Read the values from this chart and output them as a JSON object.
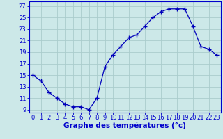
{
  "x": [
    0,
    1,
    2,
    3,
    4,
    5,
    6,
    7,
    8,
    9,
    10,
    11,
    12,
    13,
    14,
    15,
    16,
    17,
    18,
    19,
    20,
    21,
    22,
    23
  ],
  "y": [
    15,
    14,
    12,
    11,
    10,
    9.5,
    9.5,
    9,
    11,
    16.5,
    18.5,
    20,
    21.5,
    22,
    23.5,
    25,
    26,
    26.5,
    26.5,
    26.5,
    23.5,
    20,
    19.5,
    18.5
  ],
  "line_color": "#0000bb",
  "marker": "+",
  "marker_size": 4,
  "bg_color": "#cce8e8",
  "grid_color": "#aacccc",
  "xlabel": "Graphe des températures (°c)",
  "xlabel_color": "#0000cc",
  "xlabel_fontsize": 7.5,
  "tick_color": "#0000cc",
  "tick_fontsize": 6,
  "yticks": [
    9,
    11,
    13,
    15,
    17,
    19,
    21,
    23,
    25,
    27
  ],
  "xticks": [
    0,
    1,
    2,
    3,
    4,
    5,
    6,
    7,
    8,
    9,
    10,
    11,
    12,
    13,
    14,
    15,
    16,
    17,
    18,
    19,
    20,
    21,
    22,
    23
  ],
  "ylim": [
    8.5,
    27.8
  ],
  "xlim": [
    -0.5,
    23.5
  ]
}
